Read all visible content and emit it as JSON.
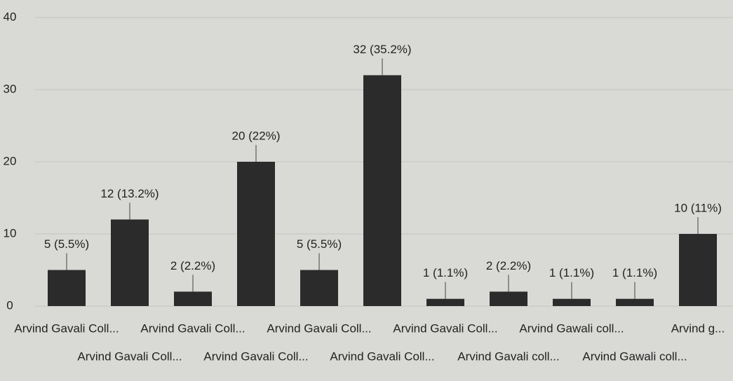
{
  "chart_data": {
    "type": "bar",
    "categories": [
      "Arvind Gavali Coll...",
      "Arvind Gavali Coll...",
      "Arvind Gavali Coll...",
      "Arvind Gavali Coll...",
      "Arvind Gavali Coll...",
      "Arvind Gavali Coll...",
      "Arvind Gavali Coll...",
      "Arvind Gavali coll...",
      "Arvind Gawali coll...",
      "Arvind Gawali coll...",
      "Arvind g..."
    ],
    "values": [
      5,
      12,
      2,
      20,
      5,
      32,
      1,
      2,
      1,
      1,
      10
    ],
    "value_labels": [
      "5 (5.5%)",
      "12 (13.2%)",
      "2 (2.2%)",
      "20 (22%)",
      "5 (5.5%)",
      "32 (35.2%)",
      "1 (1.1%)",
      "2 (2.2%)",
      "1 (1.1%)",
      "1 (1.1%)",
      "10 (11%)"
    ],
    "color": "#2a2b2a",
    "ylim": [
      0,
      40
    ],
    "yticks": [
      0,
      10,
      20,
      30,
      40
    ],
    "grid": true
  }
}
